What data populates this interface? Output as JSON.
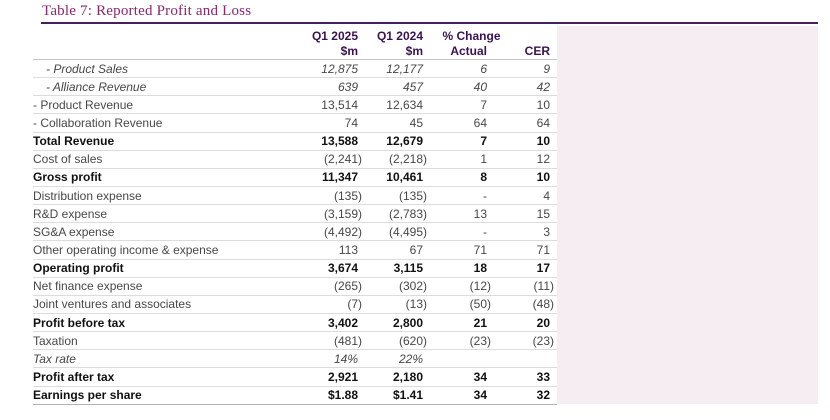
{
  "title": "Table 7: Reported Profit and Loss",
  "colors": {
    "title": "#8A2670",
    "rule": "#46205E",
    "header_text": "#3A1253",
    "panel": "#F5EDF2"
  },
  "table": {
    "header": {
      "q1_2025": "Q1 2025",
      "q1_2024": "Q1 2024",
      "pct_change": "% Change",
      "unit_2025": "$m",
      "unit_2024": "$m",
      "actual": "Actual",
      "cer": "CER"
    },
    "rows": [
      {
        "label": "- Product Sales",
        "v1": "12,875",
        "v2": "12,177",
        "v3": "6",
        "v4": "9",
        "style": "italic",
        "indent": true
      },
      {
        "label": "- Alliance Revenue",
        "v1": "639",
        "v2": "457",
        "v3": "40",
        "v4": "42",
        "style": "italic",
        "indent": true
      },
      {
        "label": "- Product Revenue",
        "v1": "13,514",
        "v2": "12,634",
        "v3": "7",
        "v4": "10",
        "style": "normal",
        "indent": false
      },
      {
        "label": "- Collaboration Revenue",
        "v1": "74",
        "v2": "45",
        "v3": "64",
        "v4": "64",
        "style": "normal",
        "indent": false
      },
      {
        "label": "Total Revenue",
        "v1": "13,588",
        "v2": "12,679",
        "v3": "7",
        "v4": "10",
        "style": "bold",
        "indent": false
      },
      {
        "label": "Cost of sales",
        "v1": "(2,241)",
        "v2": "(2,218)",
        "v3": "1",
        "v4": "12",
        "style": "normal",
        "indent": false
      },
      {
        "label": "Gross profit",
        "v1": "11,347",
        "v2": "10,461",
        "v3": "8",
        "v4": "10",
        "style": "bold",
        "indent": false
      },
      {
        "label": "Distribution expense",
        "v1": "(135)",
        "v2": "(135)",
        "v3": "-",
        "v4": "4",
        "style": "normal",
        "indent": false
      },
      {
        "label": "R&D expense",
        "v1": "(3,159)",
        "v2": "(2,783)",
        "v3": "13",
        "v4": "15",
        "style": "normal",
        "indent": false
      },
      {
        "label": "SG&A expense",
        "v1": "(4,492)",
        "v2": "(4,495)",
        "v3": "-",
        "v4": "3",
        "style": "normal",
        "indent": false
      },
      {
        "label": "Other operating income & expense",
        "v1": "113",
        "v2": "67",
        "v3": "71",
        "v4": "71",
        "style": "normal",
        "indent": false
      },
      {
        "label": "Operating profit",
        "v1": "3,674",
        "v2": "3,115",
        "v3": "18",
        "v4": "17",
        "style": "bold",
        "indent": false
      },
      {
        "label": "Net finance expense",
        "v1": "(265)",
        "v2": "(302)",
        "v3": "(12)",
        "v4": "(11)",
        "style": "normal",
        "indent": false
      },
      {
        "label": "Joint ventures and associates",
        "v1": "(7)",
        "v2": "(13)",
        "v3": "(50)",
        "v4": "(48)",
        "style": "normal",
        "indent": false
      },
      {
        "label": "Profit before tax",
        "v1": "3,402",
        "v2": "2,800",
        "v3": "21",
        "v4": "20",
        "style": "bold",
        "indent": false
      },
      {
        "label": "Taxation",
        "v1": "(481)",
        "v2": "(620)",
        "v3": "(23)",
        "v4": "(23)",
        "style": "normal",
        "indent": false
      },
      {
        "label": "Tax rate",
        "v1": "14%",
        "v2": "22%",
        "v3": "",
        "v4": "",
        "style": "italic",
        "indent": false
      },
      {
        "label": "Profit after tax",
        "v1": "2,921",
        "v2": "2,180",
        "v3": "34",
        "v4": "33",
        "style": "bold",
        "indent": false
      },
      {
        "label": "Earnings per share",
        "v1": "$1.88",
        "v2": "$1.41",
        "v3": "34",
        "v4": "32",
        "style": "bold",
        "indent": false
      }
    ]
  }
}
